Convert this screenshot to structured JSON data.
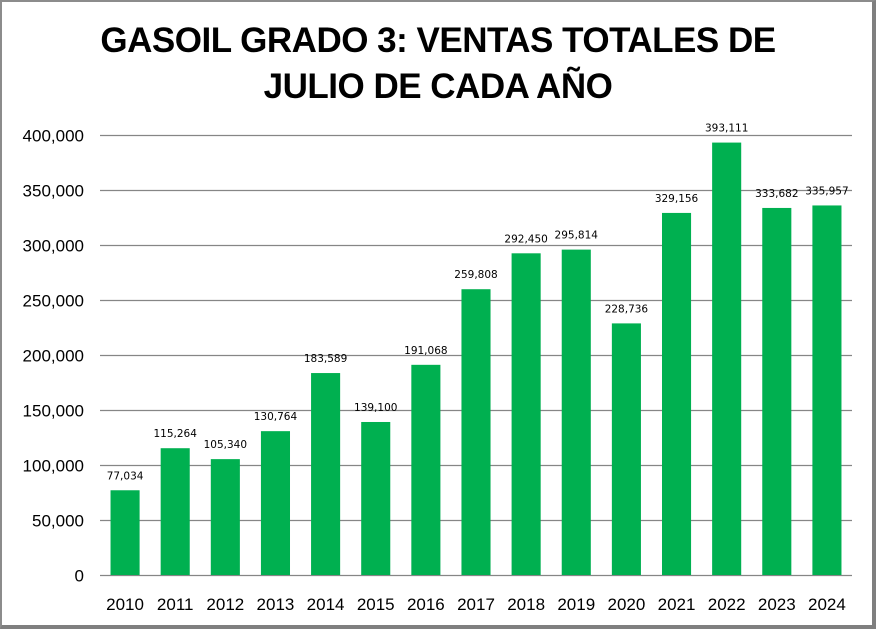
{
  "chart_data": {
    "type": "bar",
    "title_lines": [
      "GASOIL GRADO 3: VENTAS TOTALES DE",
      "JULIO DE CADA AÑO"
    ],
    "xlabel": "",
    "ylabel": "",
    "categories": [
      "2010",
      "2011",
      "2012",
      "2013",
      "2014",
      "2015",
      "2016",
      "2017",
      "2018",
      "2019",
      "2020",
      "2021",
      "2022",
      "2023",
      "2024"
    ],
    "values": [
      77034,
      115264,
      105340,
      130764,
      183589,
      139100,
      191068,
      259808,
      292450,
      295814,
      228736,
      329156,
      393111,
      333682,
      335957
    ],
    "data_labels": [
      "77,034",
      "115,264",
      "105,340",
      "130,764",
      "183,589",
      "139,100",
      "191,068",
      "259,808",
      "292,450",
      "295,814",
      "228,736",
      "329,156",
      "393,111",
      "333,682",
      "335,957"
    ],
    "ylim": [
      0,
      400000
    ],
    "yticks": [
      0,
      50000,
      100000,
      150000,
      200000,
      250000,
      300000,
      350000,
      400000
    ],
    "ytick_labels": [
      "0",
      "50,000",
      "100,000",
      "150,000",
      "200,000",
      "250,000",
      "300,000",
      "350,000",
      "400,000"
    ],
    "grid": true,
    "legend": "none",
    "colors": {
      "bar": "#00b050",
      "grid": "#868686",
      "text": "#000000"
    }
  }
}
